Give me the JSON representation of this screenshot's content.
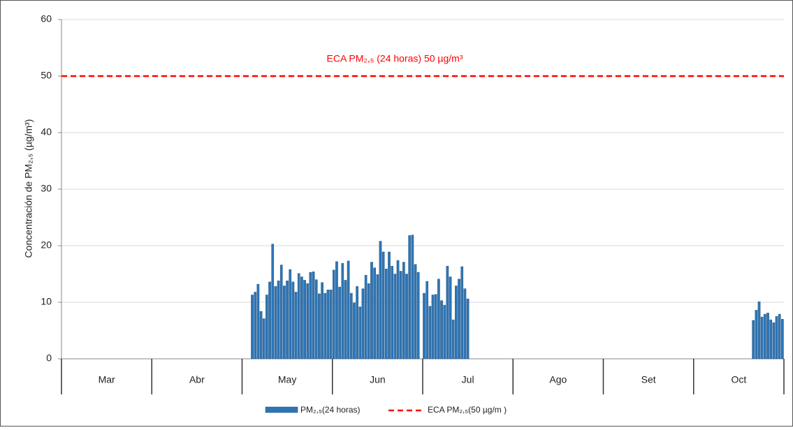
{
  "chart_data": {
    "type": "bar",
    "ylabel": "Concentración de PM₂,₅ (µg/m³)",
    "annotation": "ECA PM₂,₅ (24 horas) 50 µg/m³",
    "categories": [
      "Mar",
      "Abr",
      "May",
      "Jun",
      "Jul",
      "Ago",
      "Set",
      "Oct"
    ],
    "series": [
      {
        "name": "PM₂,₅(24 horas)",
        "color": "#2e75b6",
        "values": [
          [],
          [],
          [
            null,
            null,
            null,
            11.3,
            11.8,
            13.2,
            8.4,
            7.1,
            11.3,
            13.6,
            20.3,
            12.8,
            13.8,
            16.6,
            12.9,
            13.8,
            15.8,
            13.6,
            11.8,
            15.1,
            14.5,
            13.9,
            13.3,
            15.3,
            15.4,
            14.0,
            11.5,
            13.5,
            11.6,
            12.2,
            12.2
          ],
          [
            15.7,
            17.2,
            12.7,
            16.9,
            13.9,
            17.3,
            11.6,
            9.9,
            12.8,
            9.2,
            12.4,
            14.8,
            13.3,
            17.1,
            16.1,
            14.9,
            20.8,
            18.9,
            15.9,
            18.9,
            16.4,
            15.0,
            17.4,
            15.5,
            17.1,
            15.0,
            21.8,
            21.9,
            16.7,
            15.3
          ],
          [
            11.6,
            13.7,
            9.3,
            11.3,
            11.4,
            14.1,
            10.3,
            9.5,
            16.4,
            14.5,
            6.9,
            12.9,
            14.1,
            16.3,
            12.4,
            10.6
          ],
          [],
          [],
          [
            null,
            null,
            null,
            null,
            null,
            null,
            null,
            null,
            null,
            null,
            null,
            null,
            null,
            null,
            null,
            null,
            null,
            null,
            null,
            null,
            6.8,
            8.6,
            10.1,
            7.4,
            7.9,
            8.1,
            6.9,
            6.4,
            7.5,
            7.9,
            7.0
          ]
        ]
      }
    ],
    "reference_line": {
      "name": "ECA PM₂,₅(50 µg/m )",
      "value": 50,
      "color": "#ff0000"
    },
    "ylim": [
      0,
      60
    ],
    "yticks": [
      0,
      10,
      20,
      30,
      40,
      50,
      60
    ],
    "grid": true
  }
}
